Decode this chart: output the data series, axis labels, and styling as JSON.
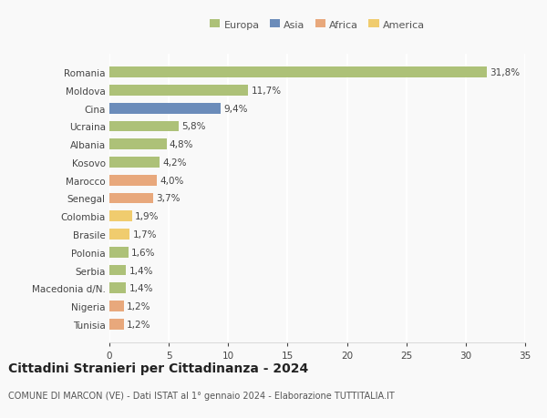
{
  "categories": [
    "Romania",
    "Moldova",
    "Cina",
    "Ucraina",
    "Albania",
    "Kosovo",
    "Marocco",
    "Senegal",
    "Colombia",
    "Brasile",
    "Polonia",
    "Serbia",
    "Macedonia d/N.",
    "Nigeria",
    "Tunisia"
  ],
  "values": [
    31.8,
    11.7,
    9.4,
    5.8,
    4.8,
    4.2,
    4.0,
    3.7,
    1.9,
    1.7,
    1.6,
    1.4,
    1.4,
    1.2,
    1.2
  ],
  "labels": [
    "31,8%",
    "11,7%",
    "9,4%",
    "5,8%",
    "4,8%",
    "4,2%",
    "4,0%",
    "3,7%",
    "1,9%",
    "1,7%",
    "1,6%",
    "1,4%",
    "1,4%",
    "1,2%",
    "1,2%"
  ],
  "colors": [
    "#adc178",
    "#adc178",
    "#6b8cba",
    "#adc178",
    "#adc178",
    "#adc178",
    "#e8a87c",
    "#e8a87c",
    "#f0cc6e",
    "#f0cc6e",
    "#adc178",
    "#adc178",
    "#adc178",
    "#e8a87c",
    "#e8a87c"
  ],
  "legend_labels": [
    "Europa",
    "Asia",
    "Africa",
    "America"
  ],
  "legend_colors": [
    "#adc178",
    "#6b8cba",
    "#e8a87c",
    "#f0cc6e"
  ],
  "xlim": [
    0,
    35
  ],
  "xticks": [
    0,
    5,
    10,
    15,
    20,
    25,
    30,
    35
  ],
  "title": "Cittadini Stranieri per Cittadinanza - 2024",
  "subtitle": "COMUNE DI MARCON (VE) - Dati ISTAT al 1° gennaio 2024 - Elaborazione TUTTITALIA.IT",
  "background_color": "#f9f9f9",
  "grid_color": "#ffffff",
  "bar_height": 0.6,
  "value_label_fontsize": 7.5,
  "ytick_fontsize": 7.5,
  "xtick_fontsize": 7.5,
  "legend_fontsize": 8,
  "title_fontsize": 10,
  "subtitle_fontsize": 7
}
